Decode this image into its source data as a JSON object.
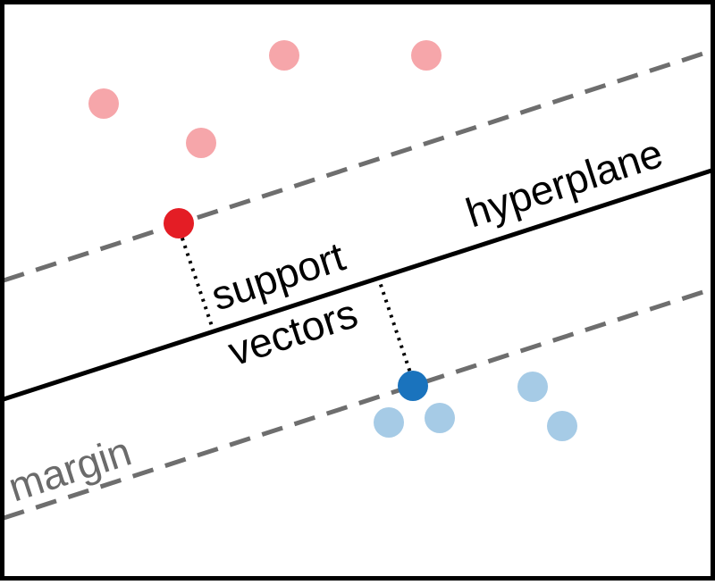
{
  "labels": {
    "hyperplane": "hyperplane",
    "support": "support",
    "vectors": "vectors",
    "margin": "margin"
  },
  "colors": {
    "frame": "#000000",
    "hyperplane": "#000000",
    "margin_line": "#6e6e6e",
    "margin_text": "#6b6b6b",
    "class_a_point": "#f6a6aa",
    "class_a_support": "#e41d25",
    "class_b_point": "#a6cbe6",
    "class_b_support": "#1a73bd"
  }
}
